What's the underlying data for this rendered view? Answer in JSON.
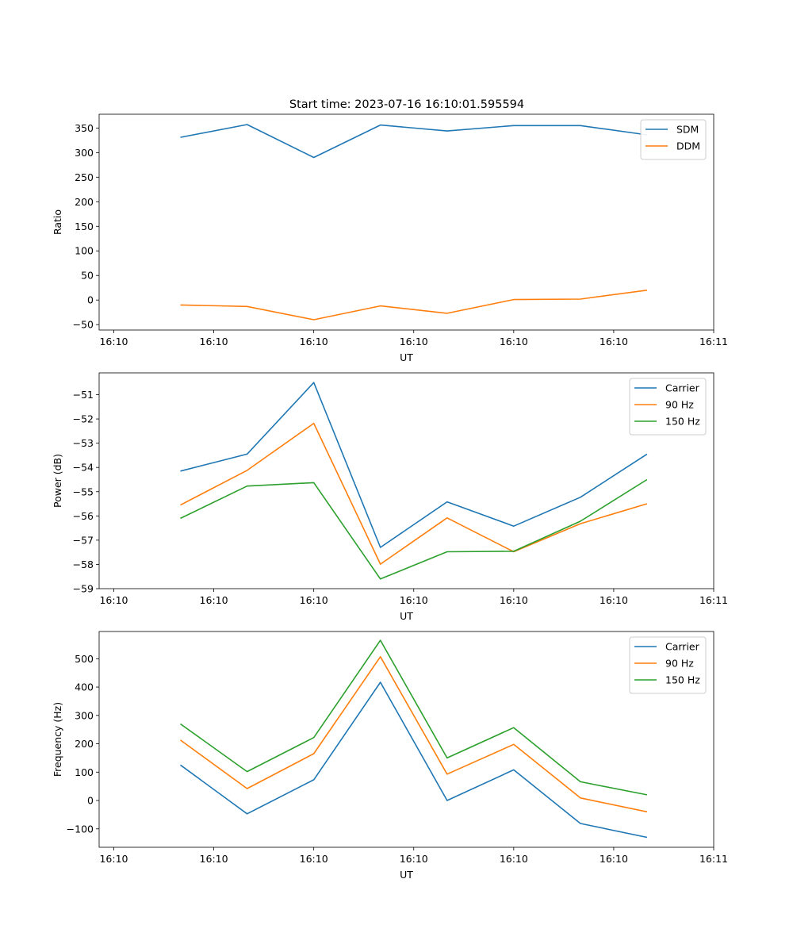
{
  "figure_title": "Start time: 2023-07-16 16:10:01.595594",
  "chart_data": [
    {
      "type": "line",
      "title": "Start time: 2023-07-16 16:10:01.595594",
      "xlabel": "UT",
      "ylabel": "Ratio",
      "x": [
        0.5,
        1.0,
        1.5,
        2.0,
        2.5,
        3.0,
        3.5,
        4.0
      ],
      "xlim": [
        -0.11,
        4.5
      ],
      "xticks": [
        0,
        0.75,
        1.5,
        2.25,
        3.0,
        3.75,
        4.5
      ],
      "xtick_labels": [
        "16:10",
        "16:10",
        "16:10",
        "16:10",
        "16:10",
        "16:10",
        "16:11"
      ],
      "ylim": [
        -61,
        378
      ],
      "yticks": [
        -50,
        0,
        50,
        100,
        150,
        200,
        250,
        300,
        350
      ],
      "legend": "top-right",
      "grid": false,
      "series": [
        {
          "name": "SDM",
          "color": "#1f77b4",
          "values": [
            331,
            357,
            290,
            356,
            344,
            355,
            355,
            336
          ]
        },
        {
          "name": "DDM",
          "color": "#ff7f0e",
          "values": [
            -10,
            -13,
            -40,
            -12,
            -27,
            1,
            2,
            20
          ]
        }
      ]
    },
    {
      "type": "line",
      "title": "",
      "xlabel": "UT",
      "ylabel": "Power (dB)",
      "x": [
        0.5,
        1.0,
        1.5,
        2.0,
        2.5,
        3.0,
        3.5,
        4.0
      ],
      "xlim": [
        -0.11,
        4.5
      ],
      "xticks": [
        0,
        0.75,
        1.5,
        2.25,
        3.0,
        3.75,
        4.5
      ],
      "xtick_labels": [
        "16:10",
        "16:10",
        "16:10",
        "16:10",
        "16:10",
        "16:10",
        "16:11"
      ],
      "ylim": [
        -59.0,
        -50.1
      ],
      "yticks": [
        -59,
        -58,
        -57,
        -56,
        -55,
        -54,
        -53,
        -52,
        -51
      ],
      "legend": "top-right",
      "grid": false,
      "series": [
        {
          "name": "Carrier",
          "color": "#1f77b4",
          "values": [
            -54.15,
            -53.45,
            -50.5,
            -57.3,
            -55.42,
            -56.42,
            -55.23,
            -53.45
          ]
        },
        {
          "name": "90 Hz",
          "color": "#ff7f0e",
          "values": [
            -55.55,
            -54.12,
            -52.18,
            -57.99,
            -56.08,
            -57.48,
            -56.32,
            -55.5
          ]
        },
        {
          "name": "150 Hz",
          "color": "#2ca02c",
          "values": [
            -56.1,
            -54.77,
            -54.63,
            -58.6,
            -57.48,
            -57.46,
            -56.22,
            -54.5
          ]
        }
      ]
    },
    {
      "type": "line",
      "title": "",
      "xlabel": "UT",
      "ylabel": "Frequency (Hz)",
      "x": [
        0.5,
        1.0,
        1.5,
        2.0,
        2.5,
        3.0,
        3.5,
        4.0
      ],
      "xlim": [
        -0.11,
        4.5
      ],
      "xticks": [
        0,
        0.75,
        1.5,
        2.25,
        3.0,
        3.75,
        4.5
      ],
      "xtick_labels": [
        "16:10",
        "16:10",
        "16:10",
        "16:10",
        "16:10",
        "16:10",
        "16:11"
      ],
      "ylim": [
        -165,
        596
      ],
      "yticks": [
        -100,
        0,
        100,
        200,
        300,
        400,
        500
      ],
      "legend": "top-right",
      "grid": false,
      "series": [
        {
          "name": "Carrier",
          "color": "#1f77b4",
          "values": [
            125,
            -47,
            73,
            417,
            0,
            108,
            -81,
            -130
          ]
        },
        {
          "name": "90 Hz",
          "color": "#ff7f0e",
          "values": [
            213,
            42,
            165,
            507,
            93,
            198,
            9,
            -40
          ]
        },
        {
          "name": "150 Hz",
          "color": "#2ca02c",
          "values": [
            270,
            102,
            222,
            565,
            150,
            257,
            66,
            20
          ]
        }
      ]
    }
  ]
}
